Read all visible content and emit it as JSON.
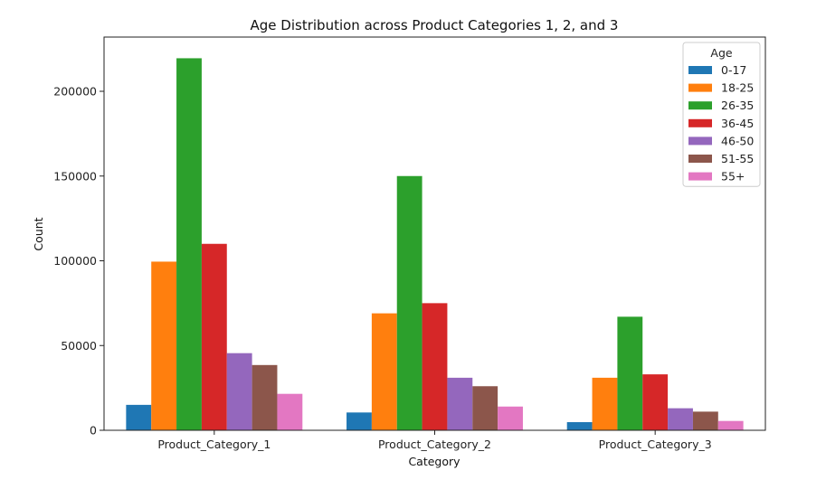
{
  "chart_data": {
    "type": "bar",
    "title": "Age Distribution across Product Categories 1, 2, and 3",
    "xlabel": "Category",
    "ylabel": "Count",
    "ylim": [
      0,
      232000
    ],
    "yticks": [
      0,
      50000,
      100000,
      150000,
      200000
    ],
    "categories": [
      "Product_Category_1",
      "Product_Category_2",
      "Product_Category_3"
    ],
    "legend": {
      "title": "Age",
      "placement": "top-right"
    },
    "grid": false,
    "series": [
      {
        "name": "0-17",
        "color": "#1f77b4",
        "values": [
          15000,
          10500,
          4800
        ]
      },
      {
        "name": "18-25",
        "color": "#ff7f0e",
        "values": [
          99500,
          69000,
          31000
        ]
      },
      {
        "name": "26-35",
        "color": "#2ca02c",
        "values": [
          219500,
          150000,
          67000
        ]
      },
      {
        "name": "36-45",
        "color": "#d62728",
        "values": [
          110000,
          75000,
          33000
        ]
      },
      {
        "name": "46-50",
        "color": "#9467bd",
        "values": [
          45500,
          31000,
          13000
        ]
      },
      {
        "name": "51-55",
        "color": "#8c564b",
        "values": [
          38500,
          26000,
          11000
        ]
      },
      {
        "name": "55+",
        "color": "#e377c2",
        "values": [
          21500,
          14000,
          5500
        ]
      }
    ]
  }
}
